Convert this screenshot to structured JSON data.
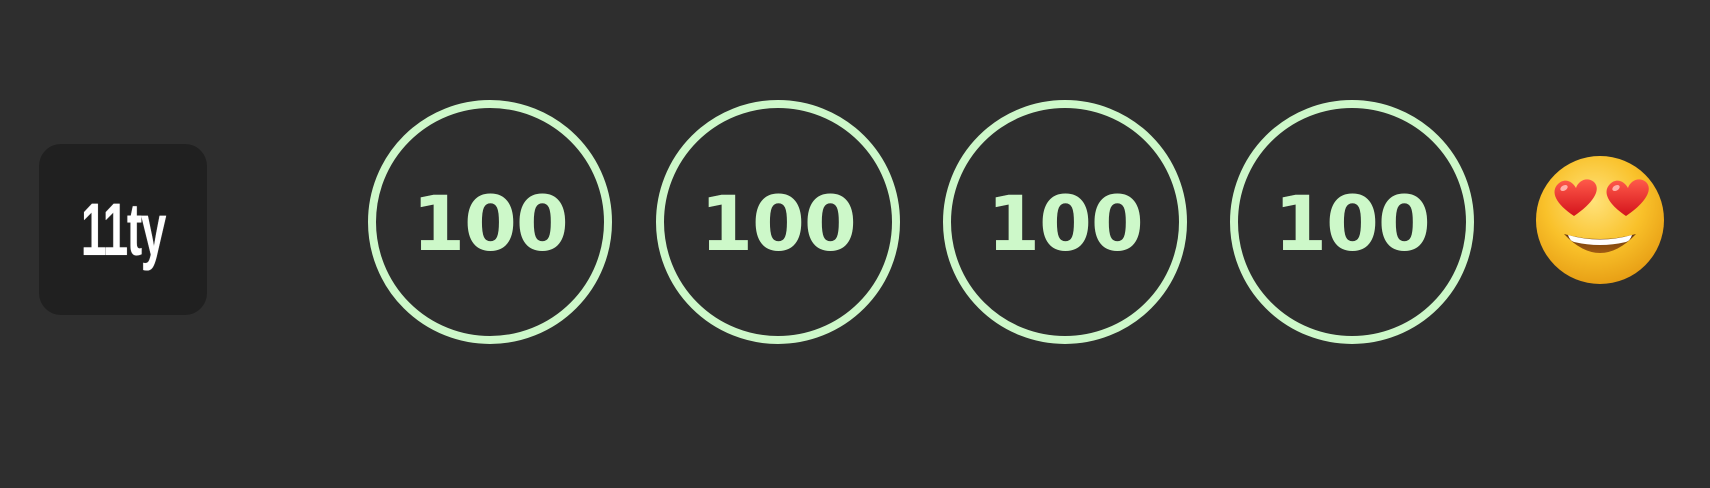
{
  "logo": {
    "text": "11ty",
    "icon": "eleventy-logo"
  },
  "scores": [
    {
      "value": "100"
    },
    {
      "value": "100"
    },
    {
      "value": "100"
    },
    {
      "value": "100"
    }
  ],
  "emoji": {
    "icon": "heart-eyes-emoji-icon"
  },
  "colors": {
    "background": "#2e2e2e",
    "logo_tile": "#202020",
    "logo_text": "#ffffff",
    "score_accent": "#cdf8c9",
    "emoji_face": "#f9c12a",
    "emoji_hearts": "#e8252f"
  }
}
